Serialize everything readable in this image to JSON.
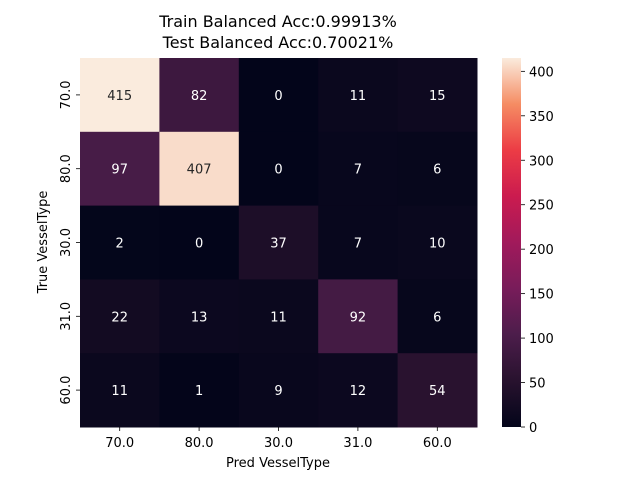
{
  "chart_data": {
    "type": "heatmap",
    "title_lines": [
      "Train Balanced Acc:0.99913%",
      "Test Balanced Acc:0.70021%"
    ],
    "xlabel": "Pred VesselType",
    "ylabel": "True VesselType",
    "x_categories": [
      "70.0",
      "80.0",
      "30.0",
      "31.0",
      "60.0"
    ],
    "y_categories": [
      "70.0",
      "80.0",
      "30.0",
      "31.0",
      "60.0"
    ],
    "values": [
      [
        415,
        82,
        0,
        11,
        15
      ],
      [
        97,
        407,
        0,
        7,
        6
      ],
      [
        2,
        0,
        37,
        7,
        10
      ],
      [
        22,
        13,
        11,
        92,
        6
      ],
      [
        11,
        1,
        9,
        12,
        54
      ]
    ],
    "colorbar": {
      "min": 0,
      "max": 415,
      "ticks": [
        0,
        50,
        100,
        150,
        200,
        250,
        300,
        350,
        400
      ],
      "colormap": "rocket"
    }
  }
}
